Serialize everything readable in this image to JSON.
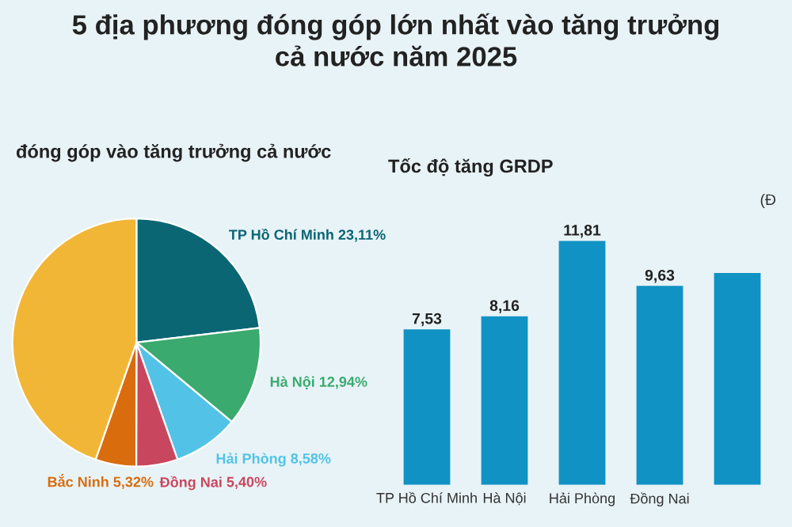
{
  "chart_data": [
    {
      "type": "pie",
      "title": "5 địa phương đóng góp lớn nhất vào tăng trưởng\ncả nước năm 2025",
      "subtitle": "đóng góp vào tăng trưởng cả nước",
      "categories": [
        "TP Hồ Chí Minh",
        "Hà Nội",
        "Hải Phòng",
        "Đồng Nai",
        "Bắc Ninh",
        null
      ],
      "values": [
        23.11,
        12.94,
        8.58,
        5.4,
        5.32,
        44.65
      ],
      "value_labels": [
        "23,11%",
        "12,94%",
        "8,58%",
        "5,40%",
        "5,32%",
        null
      ],
      "colors": [
        "#0b6674",
        "#3aaa6e",
        "#52c3e6",
        "#c8475e",
        "#d96d0e",
        "#f2b636"
      ]
    },
    {
      "type": "bar",
      "title": "Tốc độ tăng GRDP",
      "annotations": [
        "(Đ"
      ],
      "categories": [
        "TP Hồ Chí Minh",
        "Hà Nội",
        "Hải Phòng",
        "Đồng Nai",
        null
      ],
      "values": [
        7.53,
        8.16,
        11.81,
        9.63,
        10.25
      ],
      "value_labels": [
        "7,53",
        "8,16",
        "11,81",
        "9,63",
        null
      ],
      "color": "#1092c4"
    }
  ]
}
